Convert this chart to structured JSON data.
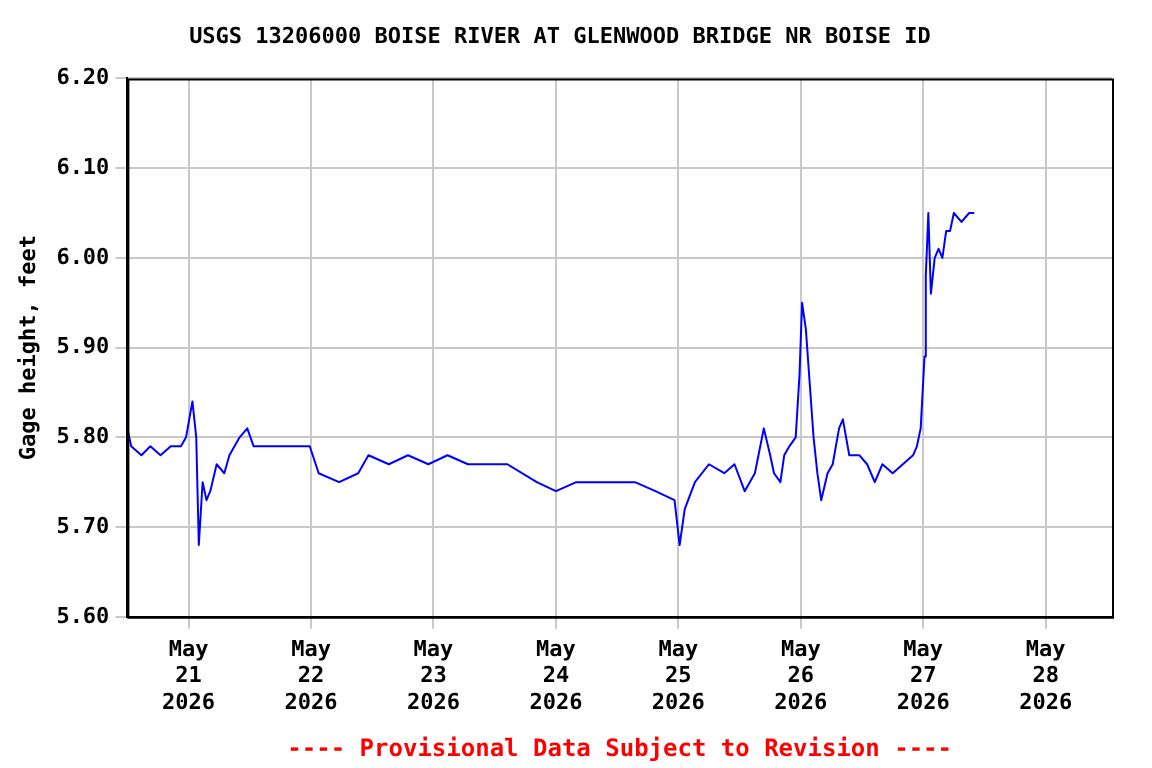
{
  "chart_data": {
    "type": "line",
    "title": "USGS 13206000 BOISE RIVER AT GLENWOOD BRIDGE NR BOISE ID",
    "ylabel": "Gage height, feet",
    "annotations": [
      "---- Provisional Data Subject to Revision ----"
    ],
    "x": [
      "2026-05-20T12:00",
      "2026-05-20T12:45",
      "2026-05-20T14:45",
      "2026-05-20T16:30",
      "2026-05-20T18:30",
      "2026-05-20T20:30",
      "2026-05-20T22:30",
      "2026-05-20T23:30",
      "2026-05-21T00:45",
      "2026-05-21T01:30",
      "2026-05-21T02:00",
      "2026-05-21T02:45",
      "2026-05-21T03:30",
      "2026-05-21T04:15",
      "2026-05-21T05:30",
      "2026-05-21T07:00",
      "2026-05-21T08:00",
      "2026-05-21T10:00",
      "2026-05-21T11:30",
      "2026-05-21T12:45",
      "2026-05-21T16:00",
      "2026-05-21T19:45",
      "2026-05-21T23:45",
      "2026-05-22T01:30",
      "2026-05-22T05:30",
      "2026-05-22T09:15",
      "2026-05-22T11:15",
      "2026-05-22T15:15",
      "2026-05-22T19:00",
      "2026-05-22T23:00",
      "2026-05-23T02:45",
      "2026-05-23T06:45",
      "2026-05-23T10:30",
      "2026-05-23T14:30",
      "2026-05-23T20:15",
      "2026-05-24T00:00",
      "2026-05-24T04:00",
      "2026-05-24T09:45",
      "2026-05-24T15:30",
      "2026-05-24T19:30",
      "2026-05-24T23:15",
      "2026-05-25T00:15",
      "2026-05-25T01:15",
      "2026-05-25T03:15",
      "2026-05-25T06:00",
      "2026-05-25T09:00",
      "2026-05-25T11:00",
      "2026-05-25T13:00",
      "2026-05-25T15:00",
      "2026-05-25T16:45",
      "2026-05-25T18:00",
      "2026-05-25T18:45",
      "2026-05-25T20:00",
      "2026-05-25T20:45",
      "2026-05-25T21:45",
      "2026-05-25T23:00",
      "2026-05-25T23:45",
      "2026-05-26T00:15",
      "2026-05-26T01:00",
      "2026-05-26T01:45",
      "2026-05-26T02:30",
      "2026-05-26T03:15",
      "2026-05-26T04:00",
      "2026-05-26T05:15",
      "2026-05-26T06:15",
      "2026-05-26T07:30",
      "2026-05-26T08:15",
      "2026-05-26T09:30",
      "2026-05-26T11:30",
      "2026-05-26T13:00",
      "2026-05-26T14:30",
      "2026-05-26T16:00",
      "2026-05-26T18:00",
      "2026-05-26T20:00",
      "2026-05-26T22:00",
      "2026-05-26T22:45",
      "2026-05-26T23:30",
      "2026-05-27T00:15",
      "2026-05-27T00:30",
      "2026-05-27T01:00",
      "2026-05-27T01:30",
      "2026-05-27T02:15",
      "2026-05-27T03:00",
      "2026-05-27T03:45",
      "2026-05-27T04:30",
      "2026-05-27T05:15",
      "2026-05-27T06:00",
      "2026-05-27T07:30",
      "2026-05-27T09:00",
      "2026-05-27T10:00"
    ],
    "series": [
      {
        "color": "#0000ff",
        "values": [
          5.81,
          5.79,
          5.78,
          5.79,
          5.78,
          5.79,
          5.79,
          5.8,
          5.84,
          5.8,
          5.68,
          5.75,
          5.73,
          5.74,
          5.77,
          5.76,
          5.78,
          5.8,
          5.81,
          5.79,
          5.79,
          5.79,
          5.79,
          5.76,
          5.75,
          5.76,
          5.78,
          5.77,
          5.78,
          5.77,
          5.78,
          5.77,
          5.77,
          5.77,
          5.75,
          5.74,
          5.75,
          5.75,
          5.75,
          5.74,
          5.73,
          5.68,
          5.72,
          5.75,
          5.77,
          5.76,
          5.77,
          5.74,
          5.76,
          5.81,
          5.78,
          5.76,
          5.75,
          5.78,
          5.79,
          5.8,
          5.87,
          5.95,
          5.92,
          5.86,
          5.8,
          5.76,
          5.73,
          5.76,
          5.77,
          5.81,
          5.82,
          5.78,
          5.78,
          5.77,
          5.75,
          5.77,
          5.76,
          5.77,
          5.78,
          5.79,
          5.81,
          5.89,
          5.98,
          6.05,
          5.96,
          6.0,
          6.01,
          6.0,
          6.03,
          6.03,
          6.05,
          6.04,
          6.05,
          6.05
        ]
      }
    ],
    "xlim": [
      "2026-05-20T12:00",
      "2026-05-28T13:00"
    ],
    "xticks": [
      {
        "value": "2026-05-21",
        "label": "May 21 2026"
      },
      {
        "value": "2026-05-22",
        "label": "May 22 2026"
      },
      {
        "value": "2026-05-23",
        "label": "May 23 2026"
      },
      {
        "value": "2026-05-24",
        "label": "May 24 2026"
      },
      {
        "value": "2026-05-25",
        "label": "May 25 2026"
      },
      {
        "value": "2026-05-26",
        "label": "May 26 2026"
      },
      {
        "value": "2026-05-27",
        "label": "May 27 2026"
      },
      {
        "value": "2026-05-28",
        "label": "May 28 2026"
      }
    ],
    "ylim": [
      5.6,
      6.2
    ],
    "yticks": [
      {
        "value": 5.6,
        "label": "5.60"
      },
      {
        "value": 5.7,
        "label": "5.70"
      },
      {
        "value": 5.8,
        "label": "5.80"
      },
      {
        "value": 5.9,
        "label": "5.90"
      },
      {
        "value": 6.0,
        "label": "6.00"
      },
      {
        "value": 6.1,
        "label": "6.10"
      },
      {
        "value": 6.2,
        "label": "6.20"
      }
    ],
    "grid": true,
    "legend": false,
    "marker": "none",
    "line_style": "solid"
  }
}
